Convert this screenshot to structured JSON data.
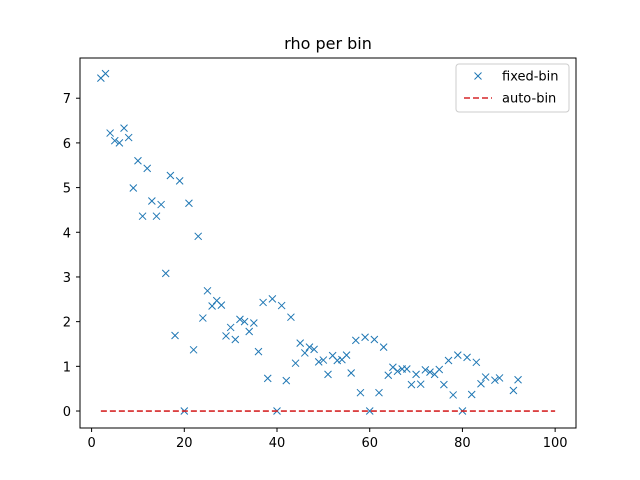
{
  "chart_data": {
    "type": "scatter",
    "title": "rho per bin",
    "xlabel": "",
    "ylabel": "",
    "xlim": [
      -2.5,
      104.5
    ],
    "ylim": [
      -0.38,
      7.9
    ],
    "xticks": [
      0,
      20,
      40,
      60,
      80,
      100
    ],
    "yticks": [
      0,
      1,
      2,
      3,
      4,
      5,
      6,
      7
    ],
    "legend_position": "top-right",
    "grid": false,
    "series": [
      {
        "name": "fixed-bin",
        "kind": "scatter",
        "marker": "x",
        "color": "#1f77b4",
        "points": [
          [
            2,
            7.45
          ],
          [
            3,
            7.55
          ],
          [
            4,
            6.22
          ],
          [
            5,
            6.05
          ],
          [
            6,
            6.0
          ],
          [
            7,
            6.33
          ],
          [
            8,
            6.12
          ],
          [
            9,
            4.99
          ],
          [
            10,
            5.6
          ],
          [
            11,
            4.36
          ],
          [
            12,
            5.43
          ],
          [
            13,
            4.7
          ],
          [
            14,
            4.36
          ],
          [
            15,
            4.62
          ],
          [
            16,
            3.08
          ],
          [
            17,
            5.27
          ],
          [
            18,
            1.69
          ],
          [
            19,
            5.15
          ],
          [
            20,
            0.0
          ],
          [
            21,
            4.65
          ],
          [
            22,
            1.37
          ],
          [
            23,
            3.91
          ],
          [
            24,
            2.08
          ],
          [
            25,
            2.69
          ],
          [
            26,
            2.35
          ],
          [
            27,
            2.47
          ],
          [
            28,
            2.37
          ],
          [
            29,
            1.68
          ],
          [
            30,
            1.87
          ],
          [
            31,
            1.6
          ],
          [
            32,
            2.05
          ],
          [
            33,
            2.0
          ],
          [
            34,
            1.78
          ],
          [
            35,
            1.97
          ],
          [
            36,
            1.33
          ],
          [
            37,
            2.43
          ],
          [
            38,
            0.73
          ],
          [
            39,
            2.51
          ],
          [
            40,
            0.0
          ],
          [
            41,
            2.36
          ],
          [
            42,
            0.68
          ],
          [
            43,
            2.1
          ],
          [
            44,
            1.07
          ],
          [
            45,
            1.52
          ],
          [
            46,
            1.3
          ],
          [
            47,
            1.43
          ],
          [
            48,
            1.38
          ],
          [
            49,
            1.1
          ],
          [
            50,
            1.14
          ],
          [
            51,
            0.82
          ],
          [
            52,
            1.24
          ],
          [
            53,
            1.13
          ],
          [
            54,
            1.15
          ],
          [
            55,
            1.25
          ],
          [
            56,
            0.85
          ],
          [
            57,
            1.58
          ],
          [
            58,
            0.41
          ],
          [
            59,
            1.65
          ],
          [
            60,
            0.0
          ],
          [
            61,
            1.6
          ],
          [
            62,
            0.41
          ],
          [
            63,
            1.43
          ],
          [
            64,
            0.8
          ],
          [
            65,
            0.98
          ],
          [
            66,
            0.89
          ],
          [
            67,
            0.94
          ],
          [
            68,
            0.94
          ],
          [
            69,
            0.59
          ],
          [
            70,
            0.82
          ],
          [
            71,
            0.6
          ],
          [
            72,
            0.92
          ],
          [
            73,
            0.87
          ],
          [
            74,
            0.82
          ],
          [
            75,
            0.93
          ],
          [
            76,
            0.59
          ],
          [
            77,
            1.13
          ],
          [
            78,
            0.36
          ],
          [
            79,
            1.25
          ],
          [
            80,
            0.0
          ],
          [
            81,
            1.2
          ],
          [
            82,
            0.37
          ],
          [
            83,
            1.09
          ],
          [
            84,
            0.61
          ],
          [
            85,
            0.76
          ],
          [
            87,
            0.69
          ],
          [
            88,
            0.74
          ],
          [
            91,
            0.46
          ],
          [
            92,
            0.7
          ]
        ]
      },
      {
        "name": "auto-bin",
        "kind": "line",
        "style": "dashed",
        "color": "#d62728",
        "x": [
          2,
          100
        ],
        "y": [
          0,
          0
        ]
      }
    ]
  }
}
